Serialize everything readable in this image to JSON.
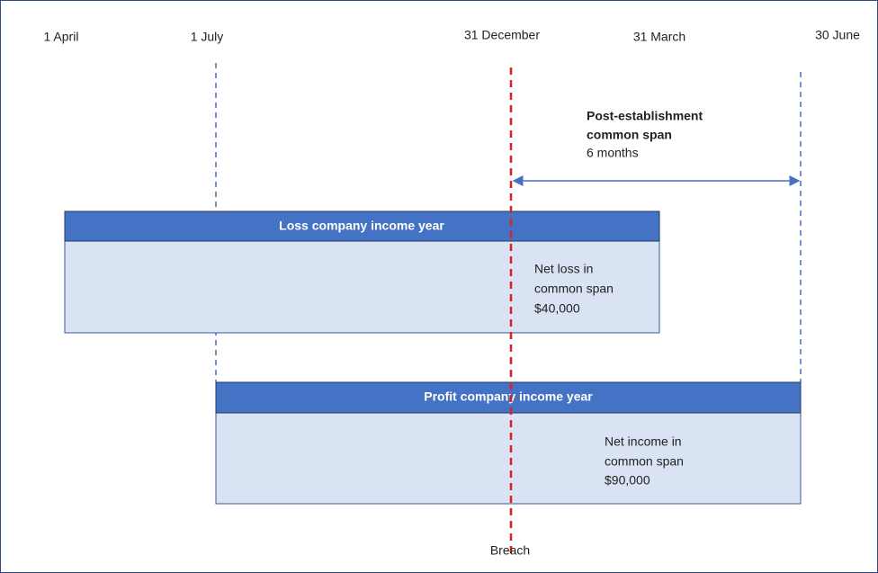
{
  "dates": [
    "1 April",
    "1 July",
    "31 December",
    "31 March",
    "30 June"
  ],
  "span": {
    "title": [
      "Post-establishment",
      "common span"
    ],
    "length": "6 months"
  },
  "bars": [
    {
      "title": "Loss company income year",
      "note": [
        "Net loss in",
        "common span",
        "$40,000"
      ]
    },
    {
      "title": "Profit company income year",
      "note": [
        "Net income in",
        "common span",
        "$90,000"
      ]
    }
  ],
  "marker": "Breach"
}
